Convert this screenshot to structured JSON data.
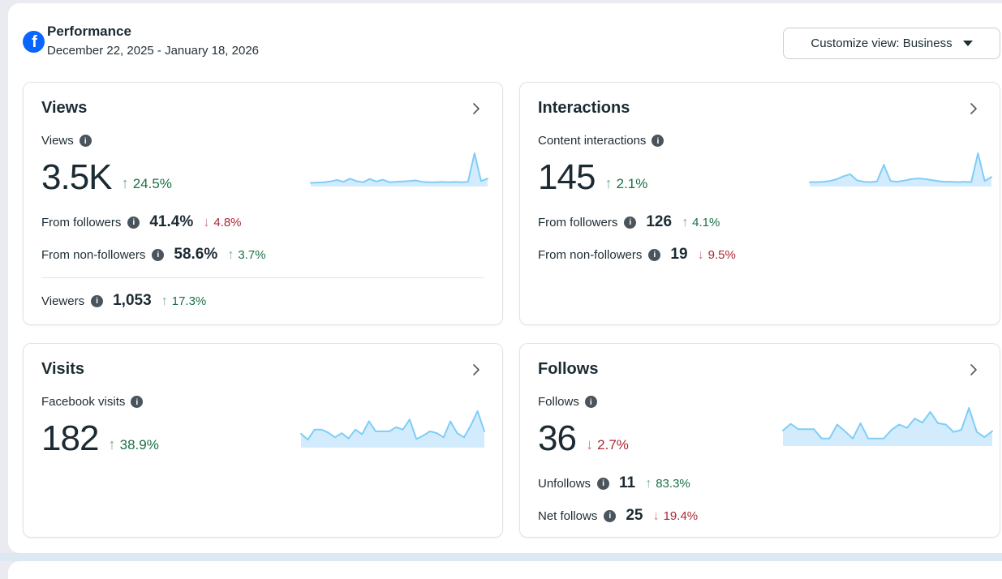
{
  "colors": {
    "accent": "#0866ff",
    "text": "#1c2b33",
    "positive": "#1b7145",
    "positive-light": "#7dab92",
    "negative": "#a82a35",
    "negative-light": "#cb7f85",
    "spark-line": "#7fcdf8",
    "spark-fill": "#d3ecfd"
  },
  "header": {
    "logo": "facebook-icon",
    "title": "Performance",
    "date_range": "December 22, 2025 - January 18, 2026",
    "customize_view": "Customize view: Business"
  },
  "cards": [
    {
      "title": "Views",
      "metric_label": "Views",
      "metric_value": "3.5K",
      "delta": {
        "dir": "up",
        "value": "24.5%"
      },
      "rows": [
        {
          "label": "From followers",
          "value": "41.4%",
          "delta": {
            "dir": "down",
            "value": "4.8%"
          }
        },
        {
          "label": "From non-followers",
          "value": "58.6%",
          "delta": {
            "dir": "up",
            "value": "3.7%"
          }
        }
      ],
      "footer_rows": [
        {
          "label": "Viewers",
          "value": "1,053",
          "delta": {
            "dir": "up",
            "value": "17.3%"
          }
        }
      ],
      "sparkline": [
        0.8,
        0.9,
        1.0,
        1.2,
        1.6,
        1.1,
        2.0,
        1.3,
        1.0,
        1.9,
        1.2,
        1.7,
        1.0,
        1.1,
        1.2,
        1.3,
        1.5,
        1.1,
        1.0,
        1.0,
        1.1,
        1.0,
        1.1,
        1.0,
        1.1,
        9.2,
        1.3,
        2.0
      ]
    },
    {
      "title": "Interactions",
      "metric_label": "Content interactions",
      "metric_value": "145",
      "delta": {
        "dir": "up",
        "value": "2.1%"
      },
      "rows": [
        {
          "label": "From followers",
          "value": "126",
          "delta": {
            "dir": "up",
            "value": "4.1%"
          }
        },
        {
          "label": "From non-followers",
          "value": "19",
          "delta": {
            "dir": "down",
            "value": "9.5%"
          }
        }
      ],
      "sparkline": [
        1.0,
        1.0,
        1.1,
        1.3,
        1.8,
        2.6,
        3.2,
        1.5,
        1.1,
        1.0,
        1.2,
        5.8,
        1.3,
        1.1,
        1.4,
        1.8,
        2.0,
        1.9,
        1.6,
        1.3,
        1.1,
        1.1,
        1.0,
        1.1,
        1.0,
        9.0,
        1.3,
        2.4
      ]
    },
    {
      "title": "Visits",
      "metric_label": "Facebook visits",
      "metric_value": "182",
      "delta": {
        "dir": "up",
        "value": "38.9%"
      },
      "rows": [],
      "sparkline": [
        2.2,
        1.2,
        2.9,
        2.9,
        2.4,
        1.6,
        2.3,
        1.4,
        2.9,
        2.1,
        4.3,
        2.6,
        2.6,
        2.6,
        3.3,
        2.9,
        4.6,
        1.3,
        1.9,
        2.6,
        2.3,
        1.6,
        4.3,
        2.3,
        1.6,
        3.6,
        6.0,
        2.6
      ]
    },
    {
      "title": "Follows",
      "metric_label": "Follows",
      "metric_value": "36",
      "delta": {
        "dir": "down",
        "value": "2.7%"
      },
      "rows": [
        {
          "label": "Unfollows",
          "value": "11",
          "delta": {
            "dir": "up",
            "value": "83.3%"
          }
        },
        {
          "label": "Net follows",
          "value": "25",
          "delta": {
            "dir": "down",
            "value": "19.4%"
          }
        }
      ],
      "sparkline": [
        2.2,
        3.2,
        2.4,
        2.4,
        2.4,
        1.0,
        1.0,
        3.1,
        2.1,
        1.0,
        3.3,
        1.0,
        1.0,
        1.0,
        2.3,
        3.1,
        2.6,
        4.0,
        3.4,
        5.0,
        3.3,
        3.1,
        2.0,
        2.3,
        5.6,
        2.0,
        1.2,
        2.1
      ]
    }
  ]
}
